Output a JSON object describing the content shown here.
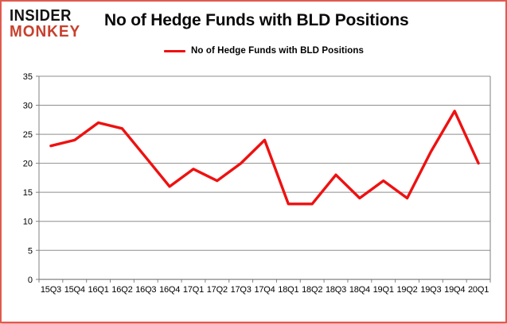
{
  "logo": {
    "line1": "INSIDER",
    "line2": "MONKEY"
  },
  "header": {
    "title": "No of Hedge Funds with BLD Positions"
  },
  "legend": {
    "label": "No of Hedge Funds with BLD Positions"
  },
  "colors": {
    "series_line": "#ee1111",
    "grid": "#8e8e8e",
    "axis": "#808080",
    "logo_red": "#c7402e",
    "card_border": "#e05b4f"
  },
  "chart_data": {
    "type": "line",
    "title": "No of Hedge Funds with BLD Positions",
    "series_name": "No of Hedge Funds with BLD Positions",
    "categories": [
      "15Q3",
      "15Q4",
      "16Q1",
      "16Q2",
      "16Q3",
      "16Q4",
      "17Q1",
      "17Q2",
      "17Q3",
      "17Q4",
      "18Q1",
      "18Q2",
      "18Q3",
      "18Q4",
      "19Q1",
      "19Q2",
      "19Q3",
      "19Q4",
      "20Q1"
    ],
    "values": [
      23,
      24,
      27,
      26,
      21,
      16,
      19,
      17,
      20,
      24,
      13,
      13,
      18,
      14,
      17,
      14,
      22,
      29,
      20
    ],
    "xlabel": "",
    "ylabel": "",
    "ylim": [
      0,
      35
    ],
    "yticks": [
      0,
      5,
      10,
      15,
      20,
      25,
      30,
      35
    ],
    "grid": true,
    "legend_position": "top-center"
  }
}
